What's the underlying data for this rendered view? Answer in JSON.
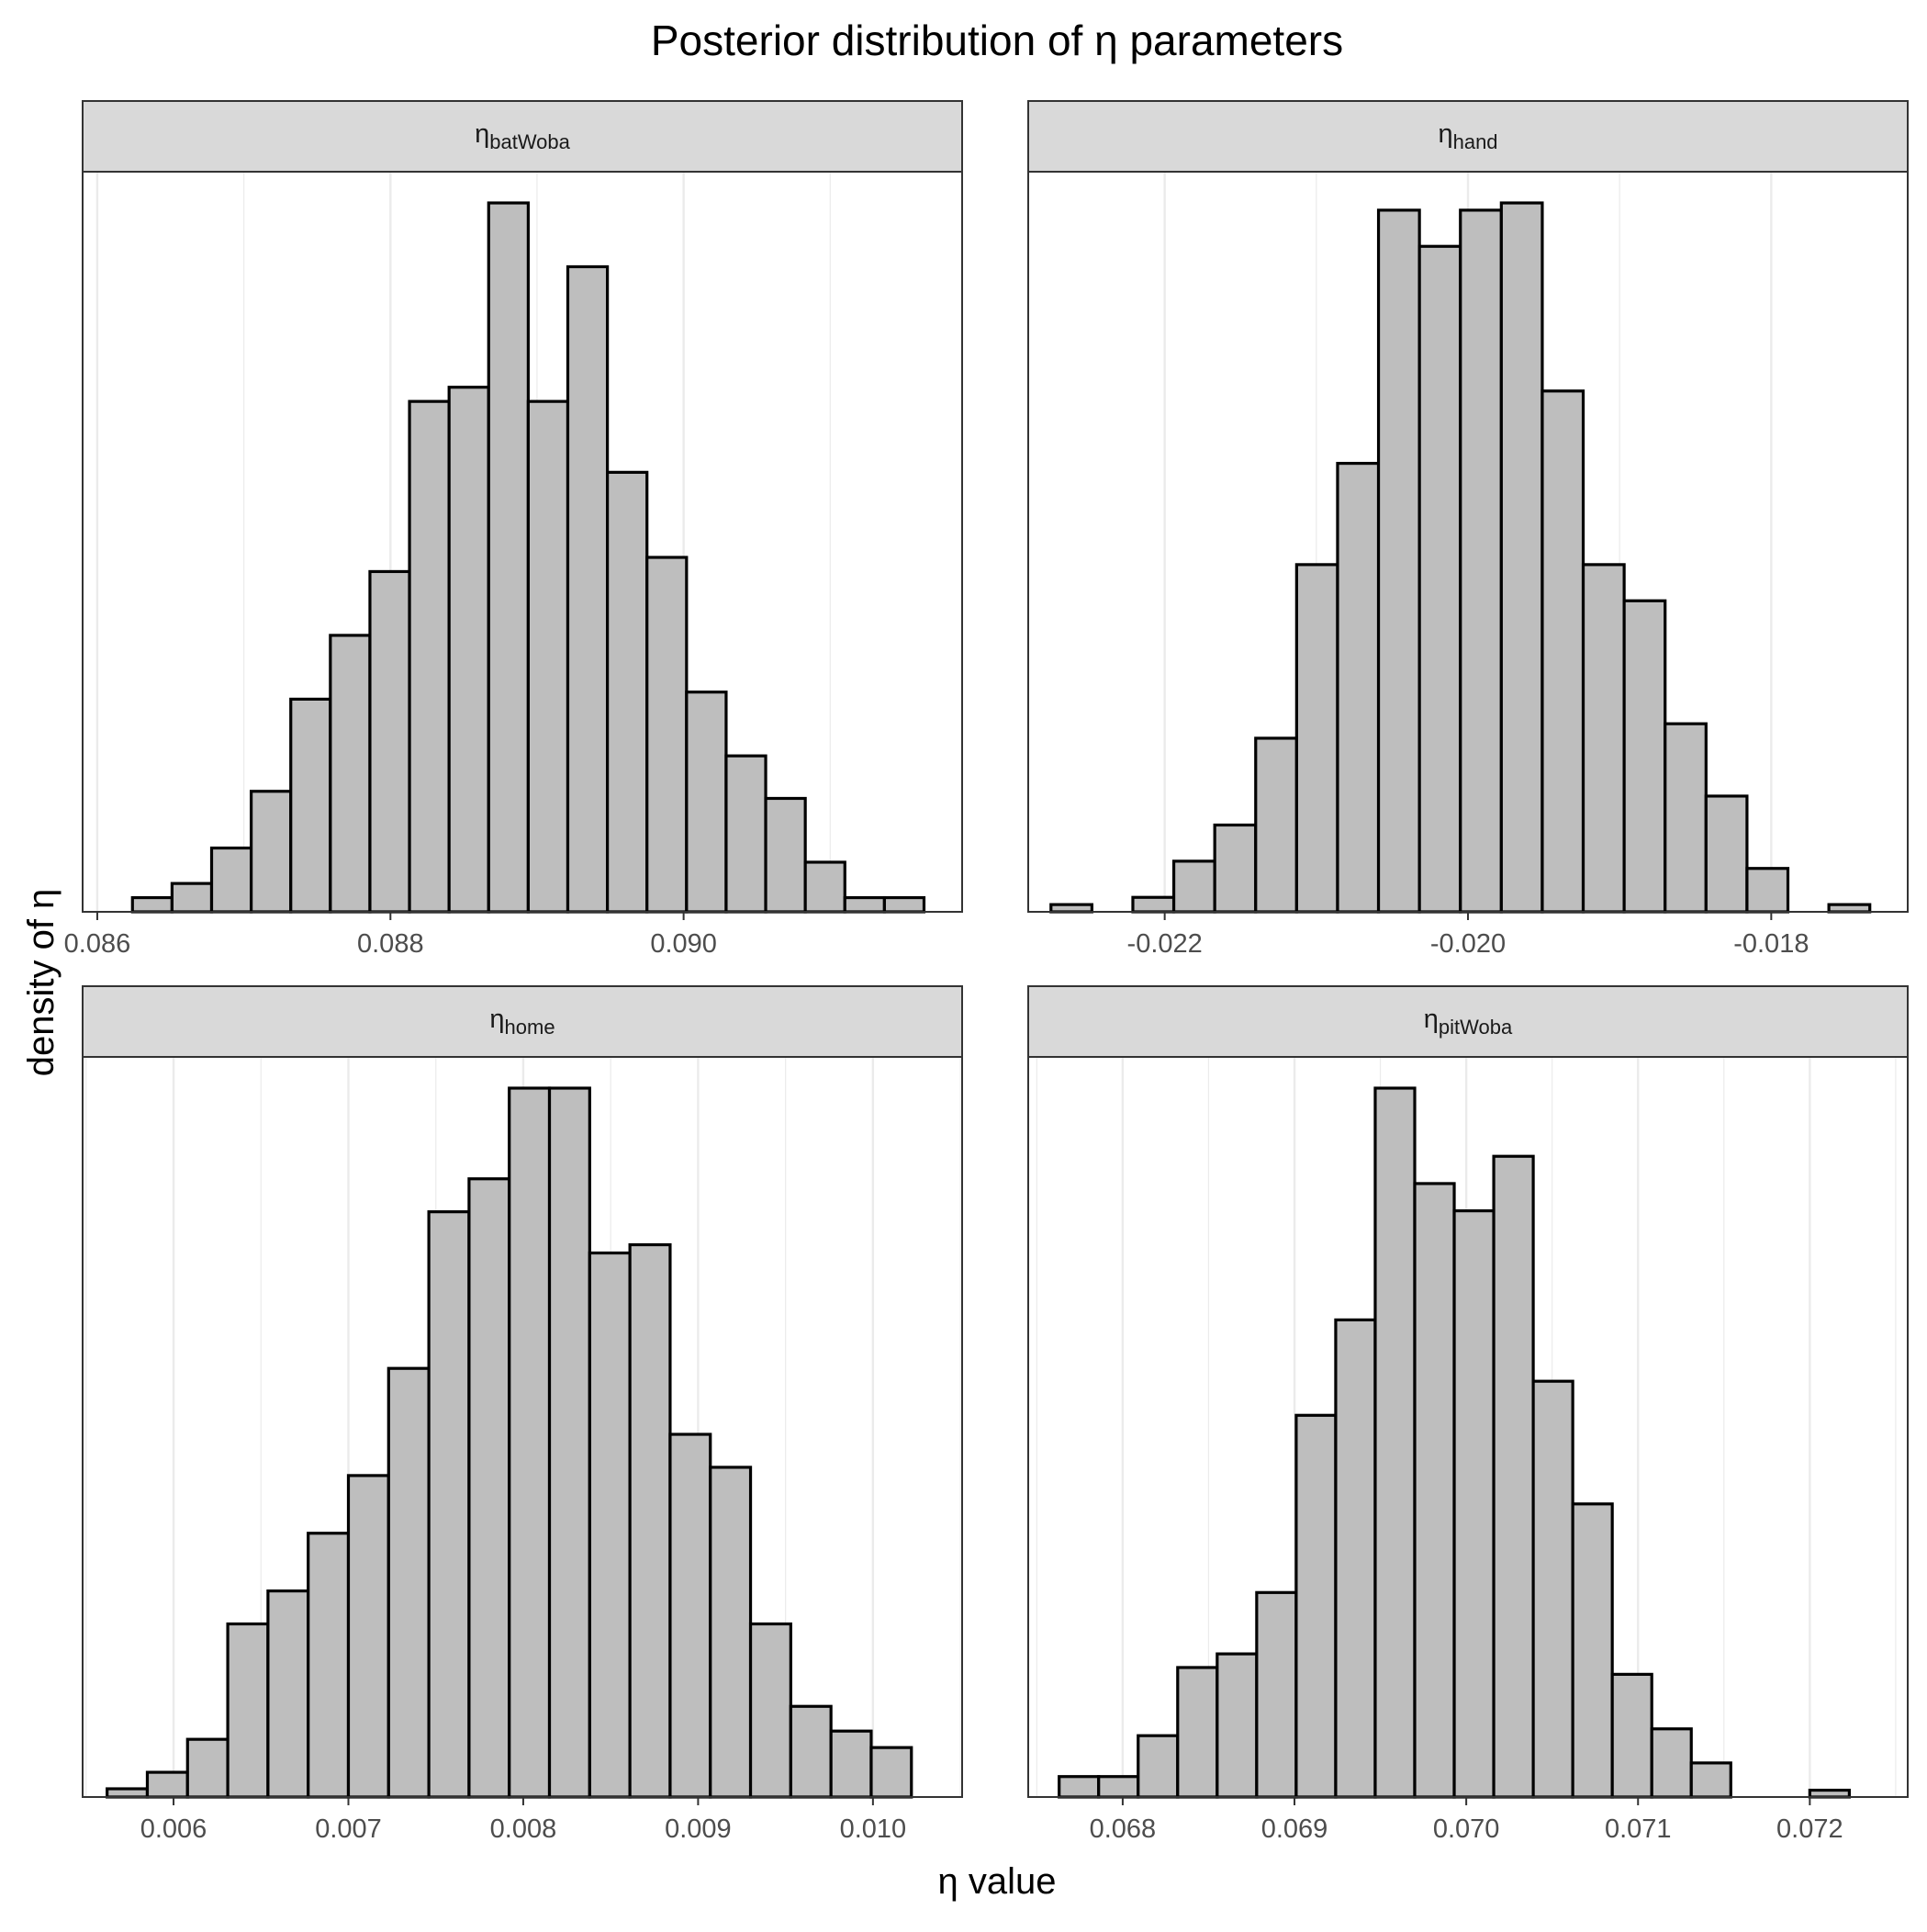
{
  "title": "Posterior distribution of η parameters",
  "xlabel": "η value",
  "ylabel": "density of η",
  "colors": {
    "bar_fill": "#bebebe",
    "bar_stroke": "#000000",
    "strip_fill": "#d9d9d9",
    "panel_border": "#333333",
    "grid": "#ebebeb",
    "tick_text": "#4d4d4d",
    "background": "#ffffff"
  },
  "chart_data": [
    {
      "type": "bar",
      "panel": "η_batWoba",
      "strip_symbol": "η",
      "strip_sub": "batWoba",
      "xlim": [
        0.0859,
        0.0919
      ],
      "xticks": [
        0.086,
        0.088,
        0.09
      ],
      "xtick_labels": [
        "0.086",
        "0.088",
        "0.090"
      ],
      "bins": [
        0.08624,
        0.08651,
        0.08678,
        0.08705,
        0.08732,
        0.08759,
        0.08786,
        0.08813,
        0.0884,
        0.08867,
        0.08894,
        0.08921,
        0.08948,
        0.08975,
        0.09002,
        0.09029,
        0.09056,
        0.09083,
        0.0911,
        0.09137,
        0.09164
      ],
      "bin_width": 0.00027,
      "counts": [
        2,
        4,
        9,
        17,
        30,
        39,
        48,
        72,
        74,
        100,
        72,
        91,
        62,
        50,
        31,
        22,
        16,
        7,
        2,
        2
      ]
    },
    {
      "type": "bar",
      "panel": "η_hand",
      "strip_symbol": "η",
      "strip_sub": "hand",
      "xlim": [
        -0.0229,
        -0.0171
      ],
      "xticks": [
        -0.022,
        -0.02,
        -0.018
      ],
      "xtick_labels": [
        "-0.022",
        "-0.020",
        "-0.018"
      ],
      "bins": [
        -0.02275,
        -0.02248,
        -0.02221,
        -0.02194,
        -0.02167,
        -0.0214,
        -0.02113,
        -0.02086,
        -0.02059,
        -0.02032,
        -0.02005,
        -0.01978,
        -0.01951,
        -0.01924,
        -0.01897,
        -0.0187,
        -0.01843,
        -0.01816,
        -0.01789,
        -0.01762,
        -0.01735
      ],
      "bin_width": 0.00027,
      "counts": [
        1,
        0,
        2,
        7,
        12,
        24,
        48,
        62,
        97,
        92,
        97,
        98,
        72,
        48,
        43,
        26,
        16,
        6,
        0,
        1
      ]
    },
    {
      "type": "bar",
      "panel": "η_home",
      "strip_symbol": "η",
      "strip_sub": "home",
      "xlim": [
        0.00548,
        0.01051
      ],
      "xticks": [
        0.006,
        0.007,
        0.008,
        0.009,
        0.01
      ],
      "xtick_labels": [
        "0.006",
        "0.007",
        "0.008",
        "0.009",
        "0.010"
      ],
      "bins": [
        0.00562,
        0.00585,
        0.00608,
        0.00631,
        0.00654,
        0.00677,
        0.007,
        0.00723,
        0.00746,
        0.00769,
        0.00792,
        0.00815,
        0.00838,
        0.00861,
        0.00884,
        0.00907,
        0.0093,
        0.00953,
        0.00976,
        0.00999,
        0.01022
      ],
      "bin_width": 0.00023,
      "counts": [
        1,
        3,
        7,
        21,
        25,
        32,
        39,
        52,
        71,
        75,
        86,
        86,
        66,
        67,
        44,
        40,
        21,
        11,
        8,
        6
      ]
    },
    {
      "type": "bar",
      "panel": "η_pitWoba",
      "strip_symbol": "η",
      "strip_sub": "pitWoba",
      "xlim": [
        0.06745,
        0.07257
      ],
      "xticks": [
        0.068,
        0.069,
        0.07,
        0.071,
        0.072
      ],
      "xtick_labels": [
        "0.068",
        "0.069",
        "0.070",
        "0.071",
        "0.072"
      ],
      "bins": [
        0.06763,
        0.06786,
        0.06809,
        0.06832,
        0.06855,
        0.06878,
        0.06901,
        0.06924,
        0.06947,
        0.0697,
        0.06993,
        0.07016,
        0.07039,
        0.07062,
        0.07085,
        0.07108,
        0.07131,
        0.07154,
        0.07177,
        0.072,
        0.07223
      ],
      "bin_width": 0.00023,
      "counts": [
        3,
        3,
        9,
        19,
        21,
        30,
        56,
        70,
        104,
        90,
        86,
        94,
        61,
        43,
        18,
        10,
        5,
        0,
        0,
        1
      ]
    }
  ]
}
